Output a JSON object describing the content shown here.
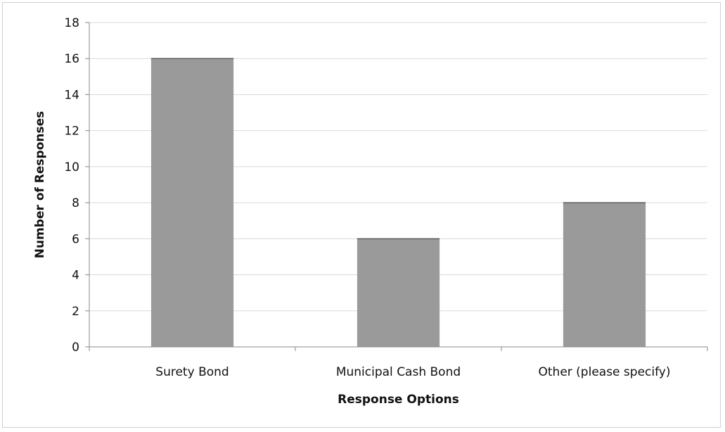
{
  "chart_data": {
    "type": "bar",
    "title": "",
    "xlabel": "Response Options",
    "ylabel": "Number of Responses",
    "categories": [
      "Surety Bond",
      "Municipal Cash Bond",
      "Other (please specify)"
    ],
    "values": [
      16,
      6,
      8
    ],
    "ylim": [
      0,
      18
    ],
    "yticks": [
      "0",
      "2",
      "4",
      "6",
      "8",
      "10",
      "12",
      "14",
      "16",
      "18"
    ],
    "grid": true,
    "legend": "none",
    "bar_color": "#9a9a9a"
  }
}
